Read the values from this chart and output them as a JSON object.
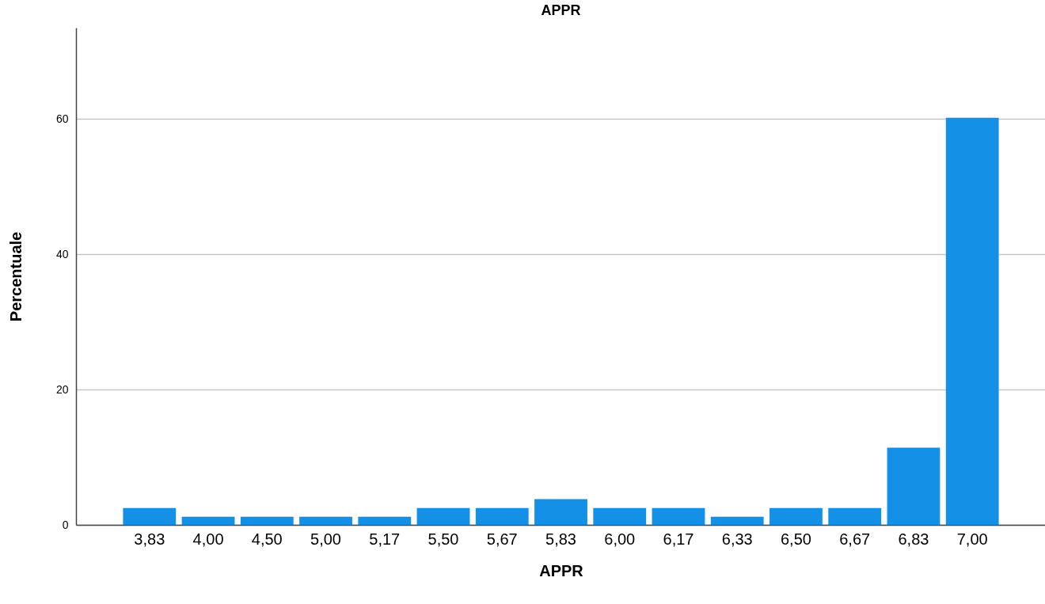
{
  "chart_data": {
    "type": "bar",
    "title": "APPR",
    "xlabel": "APPR",
    "ylabel": "Percentuale",
    "categories": [
      "3,83",
      "4,00",
      "4,50",
      "5,00",
      "5,17",
      "5,50",
      "5,67",
      "5,83",
      "6,00",
      "6,17",
      "6,33",
      "6,50",
      "6,67",
      "6,83",
      "7,00"
    ],
    "values": [
      2.5,
      1.2,
      1.2,
      1.2,
      1.2,
      2.5,
      2.5,
      3.8,
      2.5,
      2.5,
      1.2,
      2.5,
      2.5,
      11.4,
      60.2
    ],
    "color": "#1490e6",
    "ylim": [
      0,
      73.5
    ],
    "yticks": [
      0,
      20,
      40,
      60
    ],
    "grid": "y"
  }
}
